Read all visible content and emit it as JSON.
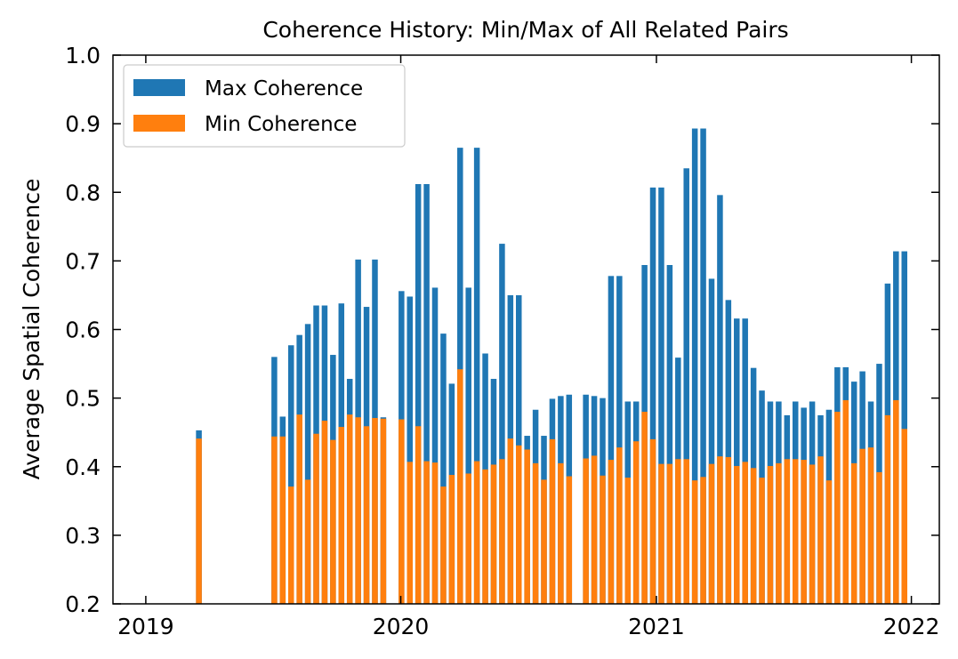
{
  "chart_data": {
    "type": "bar",
    "title": "Coherence History: Min/Max of All Related Pairs",
    "xlabel": "",
    "ylabel": "Average Spatial Coherence",
    "ylim": [
      0.2,
      1.0
    ],
    "xlim": [
      "2018-11-15",
      "2022-02-10"
    ],
    "x_ticks": [
      {
        "date": "2019-01-01",
        "label": "2019"
      },
      {
        "date": "2020-01-01",
        "label": "2020"
      },
      {
        "date": "2021-01-01",
        "label": "2021"
      },
      {
        "date": "2022-01-01",
        "label": "2022"
      }
    ],
    "y_ticks": [
      0.2,
      0.3,
      0.4,
      0.5,
      0.6,
      0.7,
      0.8,
      0.9,
      1.0
    ],
    "y_tick_labels": [
      "0.2",
      "0.3",
      "0.4",
      "0.5",
      "0.6",
      "0.7",
      "0.8",
      "0.9",
      "1.0"
    ],
    "grid": false,
    "legend_position": "top-left",
    "series": [
      {
        "name": "Max Coherence",
        "color": "#1f77b4"
      },
      {
        "name": "Min Coherence",
        "color": "#ff7f0e"
      }
    ],
    "x": [
      "2019-03-18",
      "2019-07-04",
      "2019-07-16",
      "2019-07-28",
      "2019-08-09",
      "2019-08-21",
      "2019-09-02",
      "2019-09-14",
      "2019-09-26",
      "2019-10-08",
      "2019-10-20",
      "2019-11-01",
      "2019-11-13",
      "2019-11-25",
      "2019-12-07",
      "2020-01-02",
      "2020-01-14",
      "2020-01-26",
      "2020-02-07",
      "2020-02-19",
      "2020-03-02",
      "2020-03-14",
      "2020-03-26",
      "2020-04-07",
      "2020-04-19",
      "2020-05-01",
      "2020-05-13",
      "2020-05-25",
      "2020-06-06",
      "2020-06-18",
      "2020-06-30",
      "2020-07-12",
      "2020-07-24",
      "2020-08-05",
      "2020-08-17",
      "2020-08-29",
      "2020-09-22",
      "2020-10-04",
      "2020-10-16",
      "2020-10-28",
      "2020-11-09",
      "2020-11-21",
      "2020-12-03",
      "2020-12-15",
      "2020-12-27",
      "2021-01-08",
      "2021-01-20",
      "2021-02-01",
      "2021-02-13",
      "2021-02-25",
      "2021-03-09",
      "2021-03-21",
      "2021-04-02",
      "2021-04-14",
      "2021-04-26",
      "2021-05-08",
      "2021-05-20",
      "2021-06-01",
      "2021-06-13",
      "2021-06-25",
      "2021-07-07",
      "2021-07-19",
      "2021-07-31",
      "2021-08-12",
      "2021-08-24",
      "2021-09-05",
      "2021-09-17",
      "2021-09-29",
      "2021-10-11",
      "2021-10-23",
      "2021-11-04",
      "2021-11-16",
      "2021-11-28",
      "2021-12-10",
      "2021-12-22"
    ],
    "max_values": [
      0.453,
      0.56,
      0.473,
      0.577,
      0.592,
      0.608,
      0.635,
      0.635,
      0.563,
      0.638,
      0.528,
      0.702,
      0.633,
      0.702,
      0.472,
      0.656,
      0.648,
      0.812,
      0.812,
      0.661,
      0.594,
      0.521,
      0.865,
      0.661,
      0.865,
      0.565,
      0.528,
      0.725,
      0.65,
      0.65,
      0.445,
      0.483,
      0.445,
      0.499,
      0.503,
      0.505,
      0.505,
      0.503,
      0.5,
      0.678,
      0.678,
      0.495,
      0.495,
      0.694,
      0.807,
      0.807,
      0.694,
      0.559,
      0.835,
      0.893,
      0.893,
      0.674,
      0.796,
      0.643,
      0.616,
      0.616,
      0.544,
      0.511,
      0.495,
      0.495,
      0.475,
      0.495,
      0.486,
      0.495,
      0.475,
      0.483,
      0.545,
      0.545,
      0.524,
      0.539,
      0.495,
      0.55,
      0.667,
      0.714,
      0.714
    ],
    "min_values": [
      0.441,
      0.444,
      0.444,
      0.371,
      0.476,
      0.381,
      0.448,
      0.467,
      0.439,
      0.458,
      0.476,
      0.472,
      0.459,
      0.471,
      0.47,
      0.469,
      0.407,
      0.459,
      0.408,
      0.406,
      0.371,
      0.388,
      0.542,
      0.39,
      0.408,
      0.396,
      0.403,
      0.411,
      0.441,
      0.431,
      0.425,
      0.405,
      0.381,
      0.44,
      0.405,
      0.386,
      0.412,
      0.416,
      0.387,
      0.41,
      0.428,
      0.384,
      0.437,
      0.48,
      0.44,
      0.404,
      0.404,
      0.411,
      0.411,
      0.38,
      0.385,
      0.404,
      0.415,
      0.414,
      0.401,
      0.407,
      0.398,
      0.384,
      0.401,
      0.405,
      0.411,
      0.411,
      0.41,
      0.403,
      0.415,
      0.38,
      0.48,
      0.497,
      0.405,
      0.426,
      0.428,
      0.392,
      0.475,
      0.497,
      0.455
    ]
  }
}
